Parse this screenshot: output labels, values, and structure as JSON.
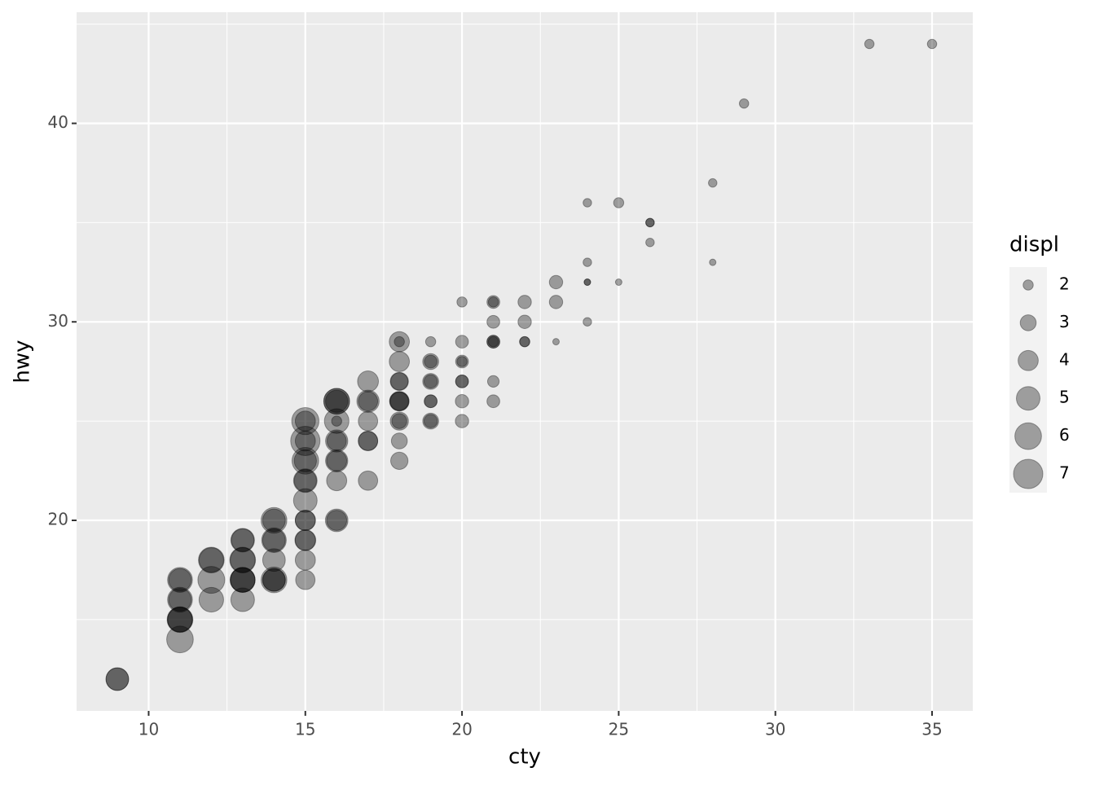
{
  "chart_data": {
    "type": "scatter",
    "x_label": "cty",
    "y_label": "hwy",
    "x": [
      9,
      9,
      11,
      11,
      11,
      11,
      11,
      11,
      11,
      11,
      12,
      12,
      12,
      12,
      13,
      13,
      13,
      13,
      13,
      13,
      13,
      13,
      14,
      14,
      14,
      14,
      14,
      14,
      14,
      14,
      15,
      15,
      15,
      15,
      15,
      15,
      15,
      15,
      15,
      15,
      15,
      15,
      15,
      15,
      15,
      16,
      16,
      16,
      16,
      16,
      16,
      16,
      16,
      16,
      16,
      16,
      16,
      17,
      17,
      17,
      17,
      17,
      17,
      17,
      18,
      18,
      18,
      18,
      18,
      18,
      18,
      18,
      18,
      18,
      18,
      18,
      19,
      19,
      19,
      19,
      19,
      19,
      19,
      19,
      19,
      20,
      20,
      20,
      20,
      20,
      20,
      20,
      20,
      21,
      21,
      21,
      21,
      21,
      21,
      21,
      21,
      22,
      22,
      22,
      22,
      23,
      23,
      23,
      24,
      24,
      24,
      24,
      24,
      25,
      25,
      26,
      26,
      26,
      28,
      28,
      29,
      33,
      35
    ],
    "values": [
      12,
      12,
      17,
      17,
      16,
      16,
      15,
      15,
      15,
      14,
      18,
      18,
      17,
      16,
      19,
      19,
      18,
      18,
      17,
      17,
      17,
      16,
      20,
      20,
      19,
      19,
      18,
      17,
      17,
      17,
      25,
      25,
      24,
      24,
      23,
      23,
      22,
      22,
      21,
      20,
      20,
      19,
      19,
      18,
      17,
      26,
      26,
      26,
      25,
      25,
      24,
      24,
      23,
      23,
      22,
      20,
      20,
      27,
      26,
      26,
      25,
      24,
      24,
      22,
      29,
      29,
      28,
      27,
      27,
      26,
      26,
      26,
      25,
      25,
      24,
      23,
      29,
      28,
      28,
      27,
      27,
      26,
      26,
      25,
      25,
      31,
      29,
      28,
      28,
      27,
      27,
      26,
      25,
      31,
      31,
      30,
      29,
      29,
      29,
      27,
      26,
      31,
      30,
      29,
      29,
      32,
      31,
      29,
      36,
      33,
      32,
      32,
      30,
      36,
      32,
      35,
      35,
      34,
      37,
      33,
      41,
      44,
      44
    ],
    "sizes": [
      4.7,
      4.7,
      5.4,
      4.7,
      5.4,
      4.7,
      5.4,
      5.4,
      5.7,
      6.0,
      5.7,
      5.3,
      6.1,
      5.3,
      5.0,
      4.7,
      5.7,
      5.4,
      5.4,
      5.4,
      5.3,
      5.0,
      5.7,
      4.7,
      5.3,
      4.7,
      4.7,
      5.7,
      4.7,
      4.7,
      6.2,
      4.0,
      7.0,
      4.0,
      6.0,
      4.6,
      5.0,
      4.6,
      5.0,
      4.0,
      4.0,
      4.0,
      4.2,
      4.0,
      3.8,
      5.7,
      5.7,
      4.6,
      5.3,
      2.0,
      4.6,
      3.8,
      4.6,
      4.0,
      4.0,
      4.7,
      4.0,
      4.2,
      4.6,
      3.8,
      3.8,
      3.8,
      3.8,
      3.8,
      4.0,
      2.0,
      4.0,
      3.5,
      3.3,
      3.8,
      3.8,
      3.5,
      3.5,
      2.8,
      3.0,
      3.3,
      2.0,
      3.0,
      2.4,
      3.0,
      2.5,
      2.4,
      2.4,
      3.0,
      2.5,
      2.0,
      2.4,
      2.4,
      2.0,
      2.4,
      2.4,
      2.5,
      2.5,
      2.4,
      2.0,
      2.4,
      2.4,
      2.4,
      2.0,
      2.2,
      2.4,
      2.5,
      2.5,
      2.0,
      2.0,
      2.5,
      2.5,
      1.6,
      1.8,
      1.8,
      1.6,
      1.6,
      1.8,
      2.0,
      1.6,
      1.8,
      1.8,
      1.8,
      1.8,
      1.6,
      1.9,
      1.9,
      1.9
    ],
    "color": "#000000",
    "alpha": 0.35,
    "xlim": [
      7.7,
      36.3
    ],
    "xticks": [
      10,
      15,
      20,
      25,
      30,
      35
    ],
    "ylim": [
      10.4,
      45.6
    ],
    "yticks": [
      20,
      30,
      40
    ],
    "grid": true,
    "size_legend": {
      "title": "displ",
      "values": [
        2,
        3,
        4,
        5,
        6,
        7
      ]
    }
  }
}
